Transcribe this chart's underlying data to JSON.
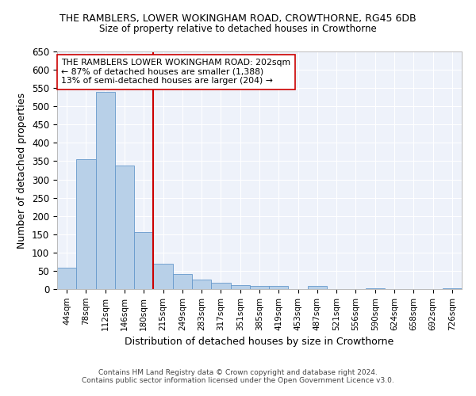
{
  "title": "THE RAMBLERS, LOWER WOKINGHAM ROAD, CROWTHORNE, RG45 6DB",
  "subtitle": "Size of property relative to detached houses in Crowthorne",
  "xlabel": "Distribution of detached houses by size in Crowthorne",
  "ylabel": "Number of detached properties",
  "bar_color": "#b8d0e8",
  "bar_edge_color": "#6699cc",
  "background_color": "#eef2fa",
  "grid_color": "#ffffff",
  "annotation_text": "THE RAMBLERS LOWER WOKINGHAM ROAD: 202sqm\n← 87% of detached houses are smaller (1,388)\n13% of semi-detached houses are larger (204) →",
  "vline_color": "#cc0000",
  "categories": [
    "44sqm",
    "78sqm",
    "112sqm",
    "146sqm",
    "180sqm",
    "215sqm",
    "249sqm",
    "283sqm",
    "317sqm",
    "351sqm",
    "385sqm",
    "419sqm",
    "453sqm",
    "487sqm",
    "521sqm",
    "556sqm",
    "590sqm",
    "624sqm",
    "658sqm",
    "692sqm",
    "726sqm"
  ],
  "values": [
    58,
    355,
    540,
    337,
    157,
    70,
    42,
    25,
    17,
    10,
    8,
    9,
    0,
    8,
    0,
    0,
    3,
    0,
    0,
    0,
    3
  ],
  "ylim": [
    0,
    650
  ],
  "yticks": [
    0,
    50,
    100,
    150,
    200,
    250,
    300,
    350,
    400,
    450,
    500,
    550,
    600,
    650
  ],
  "footer_line1": "Contains HM Land Registry data © Crown copyright and database right 2024.",
  "footer_line2": "Contains public sector information licensed under the Open Government Licence v3.0."
}
